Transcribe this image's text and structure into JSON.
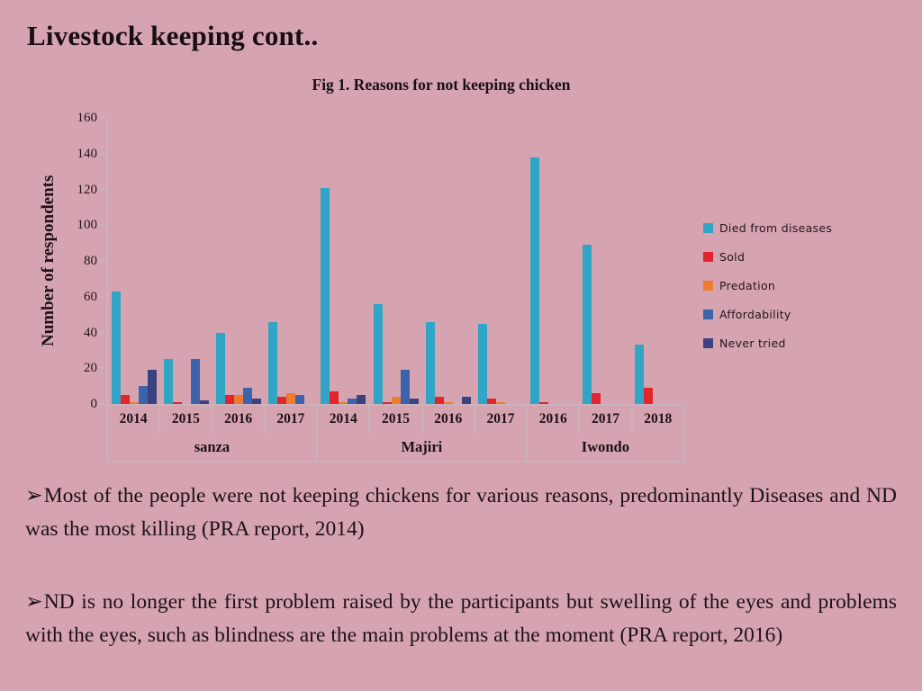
{
  "slide": {
    "title": "Livestock keeping cont..",
    "background_color": "#d6a4b0",
    "bullets": [
      {
        "marker": "➢",
        "text": "Most of the people were not keeping chickens for various reasons, predominantly Diseases and  ND was the most killing (PRA report, 2014)"
      },
      {
        "marker": "➢",
        "text": "ND is no longer the first problem raised by the participants but swelling of the eyes and problems with the eyes, such as blindness are the main problems at the moment (PRA report, 2016)"
      }
    ]
  },
  "chart_data": {
    "type": "bar",
    "title": "Fig 1. Reasons for not keeping chicken",
    "xlabel": "",
    "ylabel": "Number of respondents",
    "ylim": [
      0,
      160
    ],
    "yticks": [
      0,
      20,
      40,
      60,
      80,
      100,
      120,
      140,
      160
    ],
    "grid": false,
    "legend_position": "right",
    "axis_line_color": "#c9b2bb",
    "groups": [
      {
        "label": "sanza",
        "span": 4
      },
      {
        "label": "Majiri",
        "span": 4
      },
      {
        "label": "Iwondo",
        "span": 3
      }
    ],
    "categories": [
      "2014",
      "2015",
      "2016",
      "2017",
      "2014",
      "2015",
      "2016",
      "2017",
      "2016",
      "2017",
      "2018"
    ],
    "series": [
      {
        "name": "Died from diseases",
        "color": "#31a5c5",
        "values": [
          63,
          25,
          40,
          46,
          121,
          56,
          46,
          45,
          138,
          89,
          33
        ]
      },
      {
        "name": "Sold",
        "color": "#e3242b",
        "values": [
          5,
          1,
          5,
          4,
          7,
          1,
          4,
          3,
          1,
          6,
          9
        ]
      },
      {
        "name": "Predation",
        "color": "#ed7c30",
        "values": [
          1,
          0,
          5,
          6,
          1,
          4,
          1,
          1,
          0,
          0,
          0
        ]
      },
      {
        "name": "Affordability",
        "color": "#3e63ad",
        "values": [
          10,
          25,
          9,
          5,
          3,
          19,
          0,
          0,
          0,
          0,
          0
        ]
      },
      {
        "name": "Never tried",
        "color": "#3a4280",
        "values": [
          19,
          2,
          3,
          0,
          5,
          3,
          4,
          0,
          0,
          0,
          0
        ]
      }
    ]
  }
}
